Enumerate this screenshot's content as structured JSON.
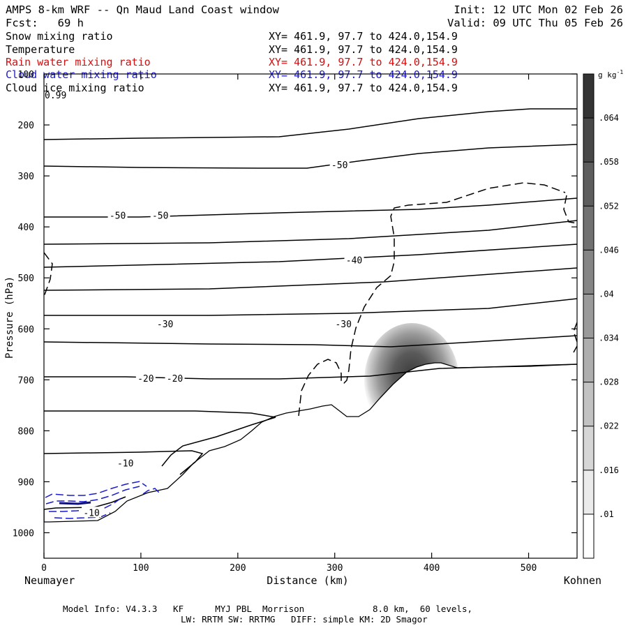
{
  "header": {
    "title": "AMPS 8-km WRF -- Qn Maud Land Coast window",
    "fcst": "Fcst:   69 h",
    "init": "Init: 12 UTC Mon 02 Feb 26",
    "valid": "Valid: 09 UTC Thu 05 Feb 26"
  },
  "fields": [
    {
      "name": "Snow mixing ratio",
      "xy": "XY= 461.9, 97.7 to 424.0,154.9",
      "color": "#000000"
    },
    {
      "name": "Temperature",
      "xy": "XY= 461.9, 97.7 to 424.0,154.9",
      "color": "#000000"
    },
    {
      "name": "Rain water mixing ratio",
      "xy": "XY= 461.9, 97.7 to 424.0,154.9",
      "color": "#d01010"
    },
    {
      "name": "Cloud water mixing ratio",
      "xy": "XY= 461.9, 97.7 to 424.0,154.9",
      "color": "#1a1acc"
    },
    {
      "name": "Cloud ice mixing ratio",
      "xy": "XY= 461.9, 97.7 to 424.0,154.9",
      "color": "#000000"
    }
  ],
  "overlay_label": "0.99",
  "colorbar": {
    "unit": "g kg",
    "unit_exp": "-1",
    "ticks": [
      ".01",
      ".016",
      ".022",
      ".028",
      ".034",
      ".04",
      ".046",
      ".052",
      ".058",
      ".064"
    ],
    "tick_values": [
      0.01,
      0.016,
      0.022,
      0.028,
      0.034,
      0.04,
      0.046,
      0.052,
      0.058,
      0.064
    ],
    "range": [
      0.004,
      0.07
    ],
    "levels": 11
  },
  "chart_data": {
    "type": "cross-section contour",
    "xlabel": "Distance (km)",
    "ylabel": "Pressure (hPa)",
    "xlim": [
      0,
      550
    ],
    "ylim": [
      1050,
      100
    ],
    "x_ticks": [
      "0",
      "100",
      "200",
      "300",
      "400",
      "500"
    ],
    "x_tick_values": [
      0,
      100,
      200,
      300,
      400,
      500
    ],
    "y_ticks": [
      "100",
      "200",
      "300",
      "400",
      "500",
      "600",
      "700",
      "800",
      "900",
      "1000"
    ],
    "y_tick_values": [
      100,
      200,
      300,
      400,
      500,
      600,
      700,
      800,
      900,
      1000
    ],
    "left_endpoint": "Neumayer",
    "right_endpoint": "Kohnen",
    "temperature_labels": [
      {
        "text": "-50",
        "x": 305,
        "p": 278
      },
      {
        "text": "-50",
        "x": 76,
        "p": 377
      },
      {
        "text": "-50",
        "x": 120,
        "p": 377
      },
      {
        "text": "-40",
        "x": 320,
        "p": 465
      },
      {
        "text": "-30",
        "x": 125,
        "p": 590
      },
      {
        "text": "-30",
        "x": 309,
        "p": 590
      },
      {
        "text": "-20",
        "x": 105,
        "p": 697
      },
      {
        "text": "-20",
        "x": 135,
        "p": 697
      },
      {
        "text": "-10",
        "x": 84,
        "p": 863
      },
      {
        "text": "-10",
        "x": 49,
        "p": 960
      }
    ],
    "temperature_isotherms_p_left": [
      226,
      278,
      378,
      433,
      478,
      523,
      578,
      628,
      697,
      760,
      845
    ],
    "snow_max": 0.07,
    "snow_max_location": {
      "x": 380,
      "p": 660
    }
  },
  "footer": {
    "model_info": "Model Info: V4.3.3   KF      MYJ PBL  Morrison             8.0 km,  60 levels,",
    "physics": "LW: RRTM SW: RRTMG   DIFF: simple KM: 2D Smagor"
  }
}
